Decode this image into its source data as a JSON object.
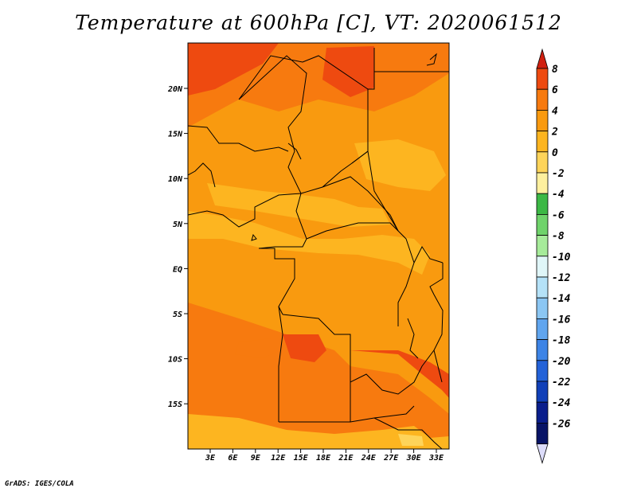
{
  "title": "Temperature at 600hPa [C], VT: 2020061512",
  "credit": "GrADS: IGES/COLA",
  "lat_labels": [
    "20N",
    "15N",
    "10N",
    "5N",
    "EQ",
    "5S",
    "10S",
    "15S"
  ],
  "lon_labels": [
    "3E",
    "6E",
    "9E",
    "12E",
    "15E",
    "18E",
    "21E",
    "24E",
    "27E",
    "30E",
    "33E"
  ],
  "colorbar": {
    "labels": [
      "8",
      "6",
      "4",
      "2",
      "0",
      "-2",
      "-4",
      "-6",
      "-8",
      "-10",
      "-12",
      "-14",
      "-16",
      "-18",
      "-20",
      "-22",
      "-24",
      "-26"
    ],
    "colors": [
      "#d02010",
      "#ee4a10",
      "#f77a0f",
      "#f99a0f",
      "#fdb520",
      "#fed45a",
      "#fef09e",
      "#3cb845",
      "#6fd36b",
      "#a6eb9a",
      "#e0f6f8",
      "#b5e2f8",
      "#8bc6f3",
      "#60a5ef",
      "#3d84e6",
      "#2362d8",
      "#1140b8",
      "#0a1e8c",
      "#081466",
      "#dcdcfa"
    ]
  }
}
